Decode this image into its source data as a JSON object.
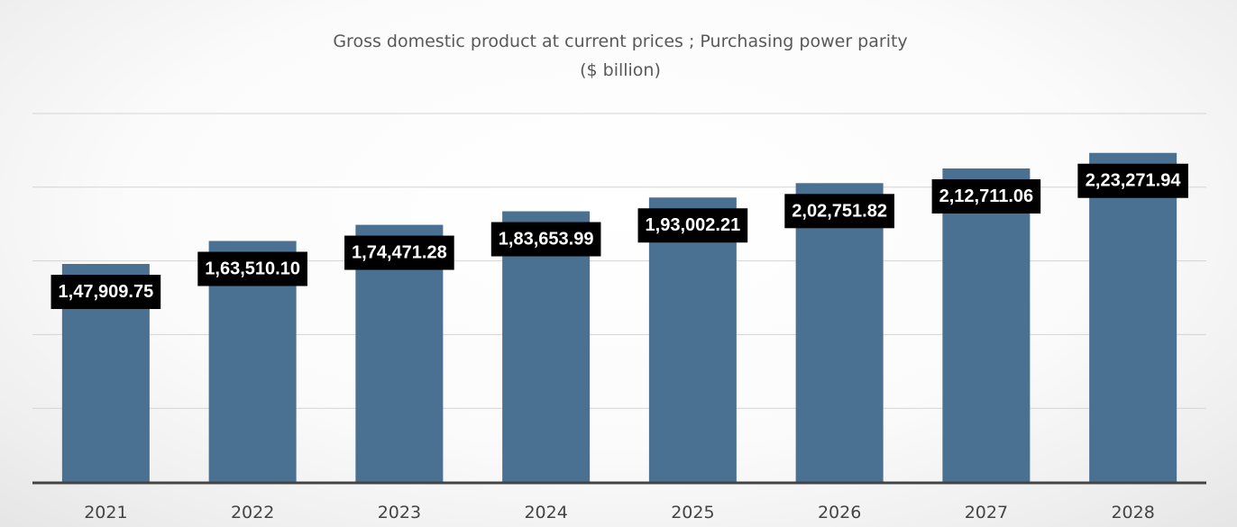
{
  "chart_data": {
    "type": "bar",
    "title": "Gross domestic product at current prices ; Purchasing power parity",
    "subtitle": "($ billion)",
    "xlabel": "",
    "ylabel": "",
    "categories": [
      "2021",
      "2022",
      "2023",
      "2024",
      "2025",
      "2026",
      "2027",
      "2028"
    ],
    "values": [
      147909.75,
      163510.1,
      174471.28,
      183653.99,
      193002.21,
      202751.82,
      212711.06,
      223271.94
    ],
    "data_labels": [
      "1,47,909.75",
      "1,63,510.10",
      "1,74,471.28",
      "1,83,653.99",
      "1,93,002.21",
      "2,02,751.82",
      "2,12,711.06",
      "2,23,271.94"
    ],
    "ylim": [
      0,
      250000
    ],
    "grid": true,
    "legend": "none",
    "bar_color": "#4a7092",
    "label_bg_color": "#000000"
  }
}
